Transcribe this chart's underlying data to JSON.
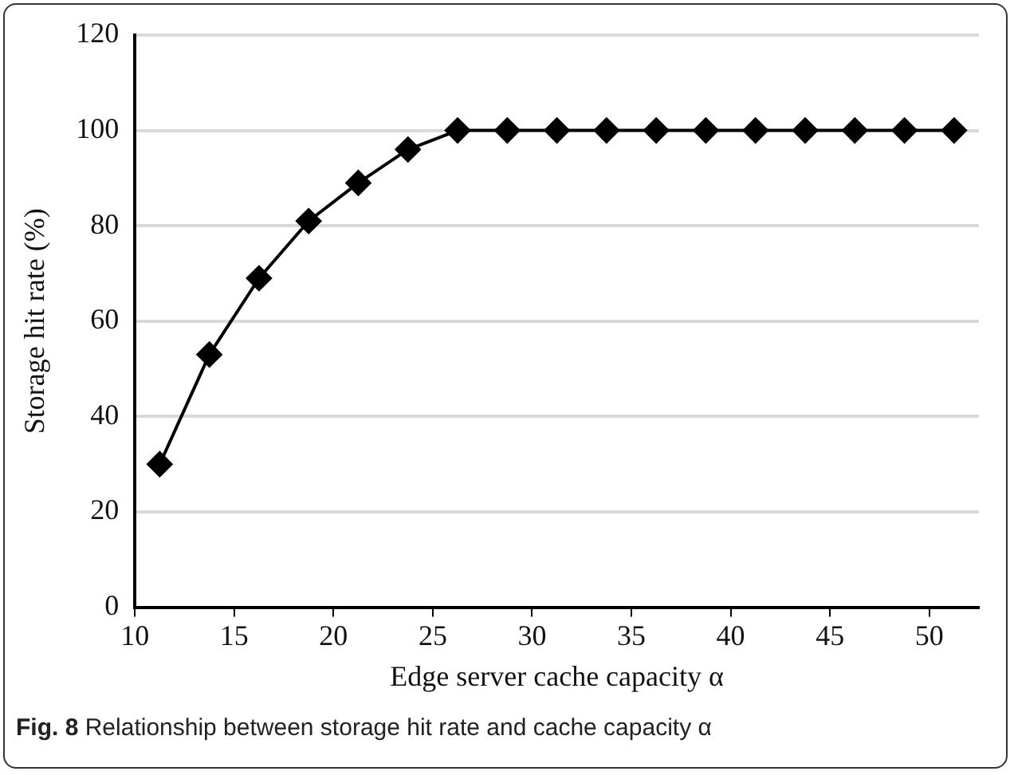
{
  "chart_data": {
    "type": "line",
    "xlabel": "Edge server cache capacity α",
    "ylabel": "Storage hit rate (%)",
    "annotations": [
      "Fig. 8 Relationship between storage hit rate and cache capacity α"
    ],
    "x": [
      11.25,
      13.75,
      16.25,
      18.75,
      21.25,
      23.75,
      26.25,
      28.75,
      31.25,
      33.75,
      36.25,
      38.75,
      41.25,
      43.75,
      46.25,
      48.75,
      51.25
    ],
    "series": [
      {
        "color": "#000000",
        "values": [
          30,
          53,
          69,
          81,
          89,
          96,
          100,
          100,
          100,
          100,
          100,
          100,
          100,
          100,
          100,
          100,
          100
        ]
      }
    ],
    "xlim": [
      10,
      52.5
    ],
    "xticks": [
      10,
      15,
      20,
      25,
      30,
      35,
      40,
      45,
      50
    ],
    "ylim": [
      0,
      120
    ],
    "yticks": [
      0,
      20,
      40,
      60,
      80,
      100,
      120
    ],
    "grid": "y",
    "legend": false,
    "marker": "diamond",
    "line_style": "solid"
  }
}
